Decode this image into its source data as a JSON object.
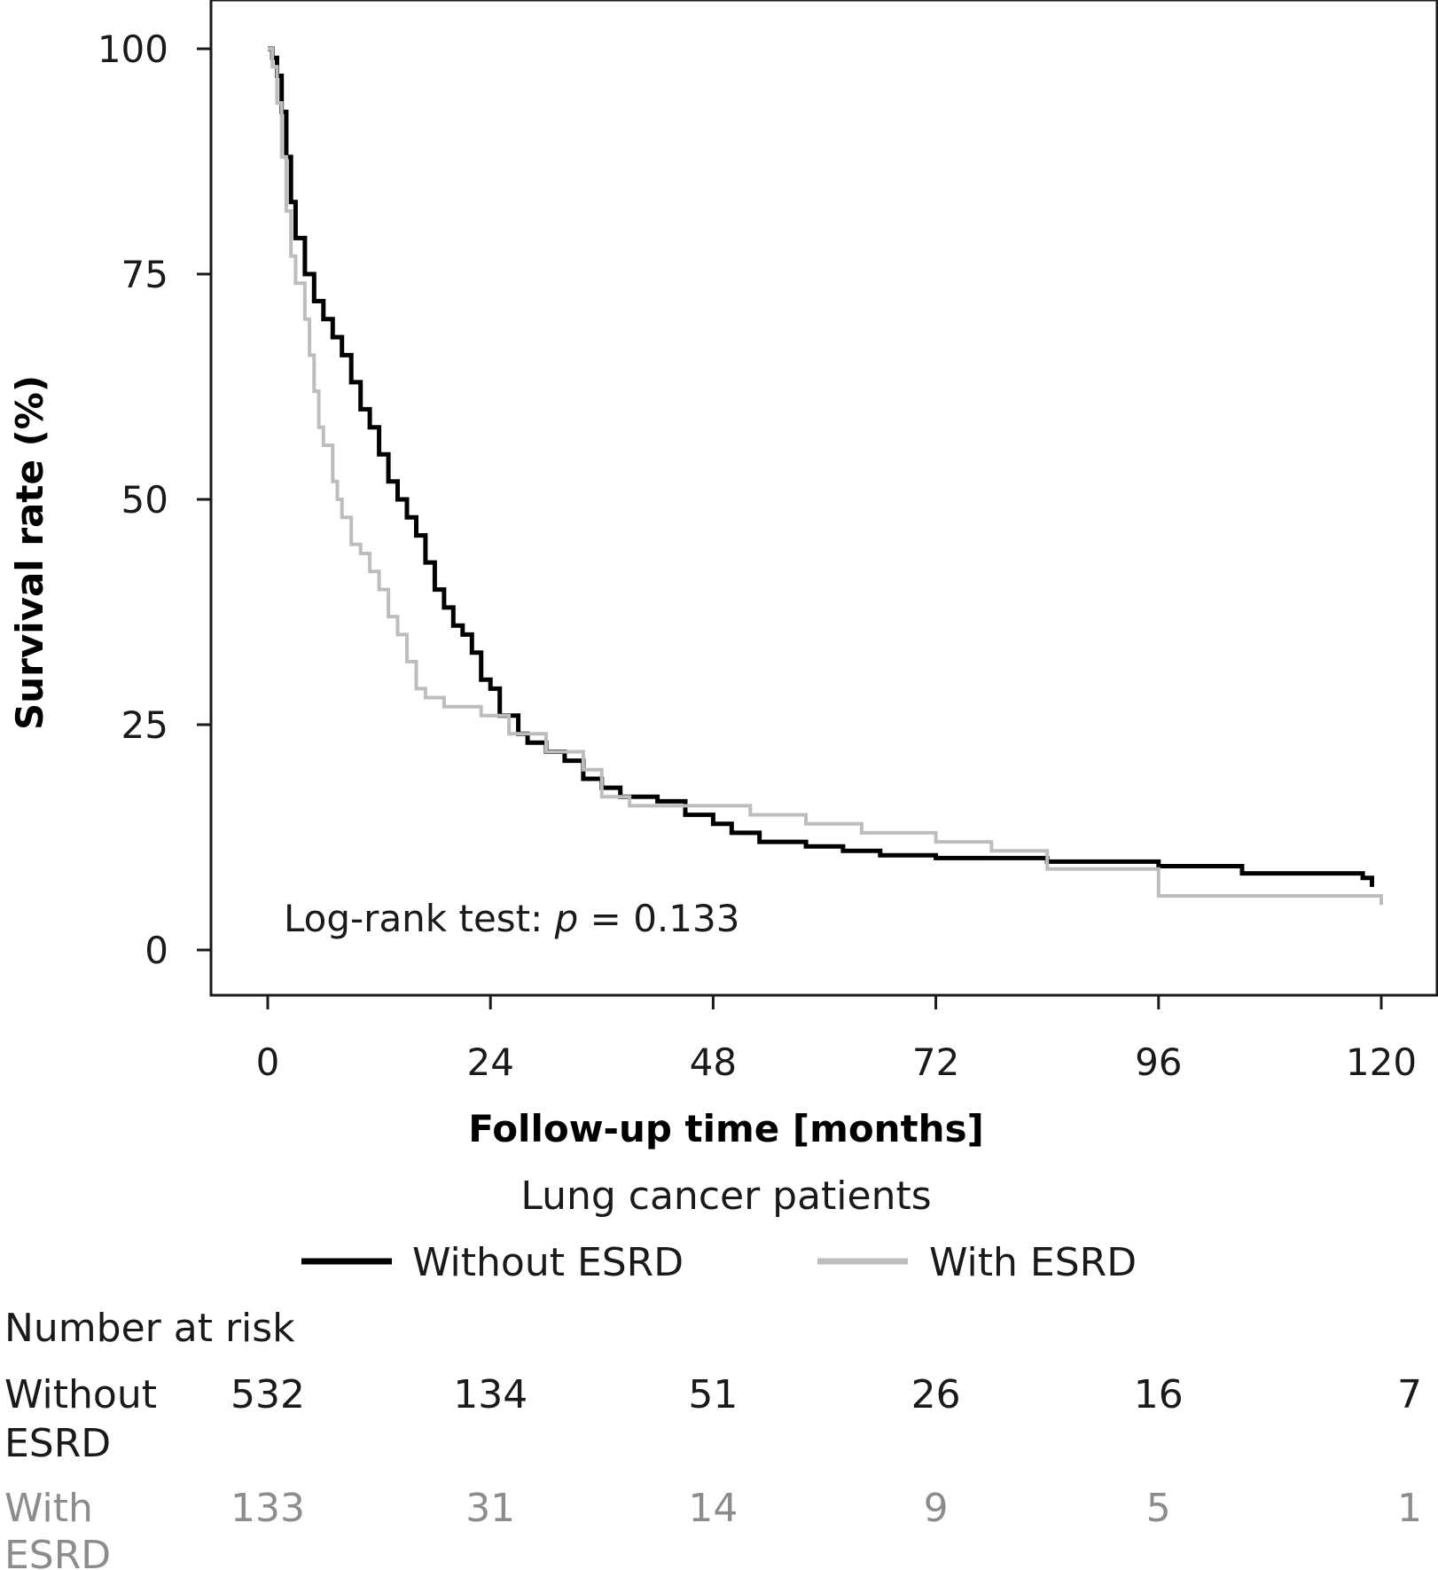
{
  "chart_data": {
    "type": "line",
    "subtitle": "Lung cancer patients",
    "xlabel": "Follow-up time [months]",
    "ylabel": "Survival rate (%)",
    "xlim": [
      0,
      120
    ],
    "ylim": [
      0,
      100
    ],
    "x_ticks": [
      "0",
      "24",
      "48",
      "72",
      "96",
      "120"
    ],
    "y_ticks": [
      "0",
      "25",
      "50",
      "75",
      "100"
    ],
    "grid": false,
    "legend_position": "bottom",
    "annotation": {
      "prefix": "Log-rank test: ",
      "italic": "p",
      "suffix": " = 0.133"
    },
    "series": [
      {
        "name": "Without ESRD",
        "color": "#000000",
        "points": [
          [
            0,
            100
          ],
          [
            0.5,
            99
          ],
          [
            1,
            97
          ],
          [
            1.5,
            93
          ],
          [
            2,
            88
          ],
          [
            2.5,
            83
          ],
          [
            3,
            79
          ],
          [
            4,
            75
          ],
          [
            5,
            72
          ],
          [
            6,
            70
          ],
          [
            7,
            68
          ],
          [
            8,
            66
          ],
          [
            9,
            63
          ],
          [
            10,
            60
          ],
          [
            11,
            58
          ],
          [
            12,
            55
          ],
          [
            13,
            52
          ],
          [
            14,
            50
          ],
          [
            15,
            48
          ],
          [
            16,
            46
          ],
          [
            17,
            43
          ],
          [
            18,
            40
          ],
          [
            19,
            38
          ],
          [
            20,
            36
          ],
          [
            21,
            35
          ],
          [
            22,
            33
          ],
          [
            23,
            30
          ],
          [
            24,
            29
          ],
          [
            25,
            26
          ],
          [
            27,
            24
          ],
          [
            28,
            23
          ],
          [
            30,
            22
          ],
          [
            32,
            21
          ],
          [
            34,
            19
          ],
          [
            36,
            18
          ],
          [
            38,
            17
          ],
          [
            42,
            16.5
          ],
          [
            45,
            15
          ],
          [
            48,
            14
          ],
          [
            50,
            13
          ],
          [
            53,
            12
          ],
          [
            58,
            11.5
          ],
          [
            62,
            11
          ],
          [
            66,
            10.5
          ],
          [
            72,
            10.2
          ],
          [
            84,
            9.8
          ],
          [
            96,
            9.3
          ],
          [
            105,
            8.5
          ],
          [
            118,
            8
          ],
          [
            119,
            7
          ]
        ]
      },
      {
        "name": "With ESRD",
        "color": "#bdbdbd",
        "points": [
          [
            0,
            100
          ],
          [
            0.5,
            98
          ],
          [
            1,
            94
          ],
          [
            1.5,
            88
          ],
          [
            2,
            82
          ],
          [
            2.5,
            77
          ],
          [
            3,
            74
          ],
          [
            4,
            70
          ],
          [
            4.5,
            66
          ],
          [
            5,
            62
          ],
          [
            5.5,
            58
          ],
          [
            6,
            56
          ],
          [
            7,
            52
          ],
          [
            7.5,
            50
          ],
          [
            8,
            48
          ],
          [
            9,
            45
          ],
          [
            10,
            44
          ],
          [
            11,
            42
          ],
          [
            12,
            40
          ],
          [
            13,
            37
          ],
          [
            14,
            35
          ],
          [
            15,
            32
          ],
          [
            16,
            29
          ],
          [
            17,
            28
          ],
          [
            19,
            27
          ],
          [
            23,
            26
          ],
          [
            26,
            24
          ],
          [
            30,
            22
          ],
          [
            34,
            20
          ],
          [
            36,
            17
          ],
          [
            39,
            16
          ],
          [
            47,
            16
          ],
          [
            52,
            15
          ],
          [
            58,
            14
          ],
          [
            64,
            13
          ],
          [
            72,
            12
          ],
          [
            78,
            11
          ],
          [
            84,
            9
          ],
          [
            96,
            6
          ],
          [
            120,
            5
          ]
        ]
      }
    ],
    "risk_table": {
      "title": "Number at risk",
      "rows": [
        {
          "label_line1": "Without",
          "label_line2": "ESRD",
          "color": "#1a1a1a",
          "values": [
            "532",
            "134",
            "51",
            "26",
            "16",
            "7"
          ]
        },
        {
          "label_line1": "With",
          "label_line2": "ESRD",
          "color": "#8c8c8c",
          "values": [
            "133",
            "31",
            "14",
            "9",
            "5",
            "1"
          ]
        }
      ]
    }
  }
}
